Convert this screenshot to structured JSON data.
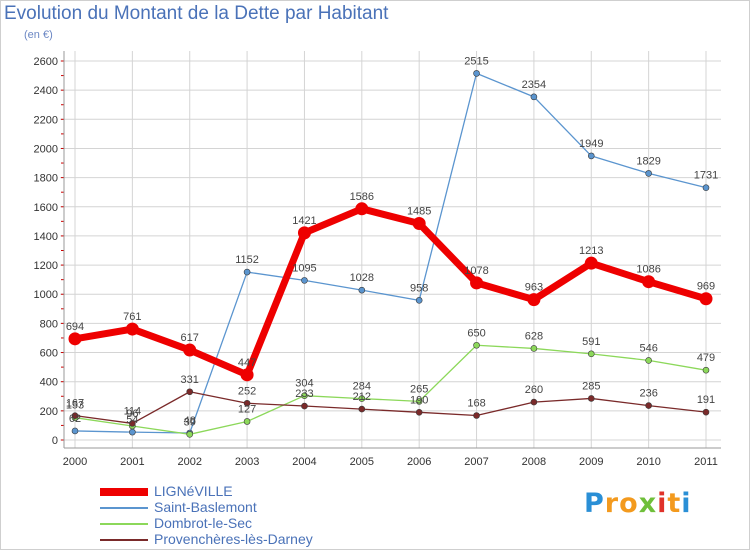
{
  "title": "Evolution du Montant de la Dette par Habitant",
  "subtitle": "(en €)",
  "logo_text": "Proxiti",
  "chart_data": {
    "type": "line",
    "x": [
      "2000",
      "2001",
      "2002",
      "2003",
      "2004",
      "2005",
      "2006",
      "2007",
      "2008",
      "2009",
      "2010",
      "2011"
    ],
    "ylim": [
      0,
      2600
    ],
    "yticks": [
      0,
      200,
      400,
      600,
      800,
      1000,
      1200,
      1400,
      1600,
      1800,
      2000,
      2200,
      2400,
      2600
    ],
    "grid": true,
    "legend_position": "bottom-left",
    "series": [
      {
        "name": "LIGNéVILLE",
        "color": "#ee0000",
        "emphasis": true,
        "values": [
          694,
          761,
          617,
          447,
          1421,
          1586,
          1485,
          1078,
          963,
          1213,
          1086,
          969
        ]
      },
      {
        "name": "Saint-Baslemont",
        "color": "#5b95cf",
        "values": [
          62,
          54,
          48,
          1152,
          1095,
          1028,
          958,
          2515,
          2354,
          1949,
          1829,
          1731
        ]
      },
      {
        "name": "Dombrot-le-Sec",
        "color": "#8cd85a",
        "values": [
          153,
          96,
          39,
          127,
          304,
          284,
          265,
          650,
          628,
          591,
          546,
          479
        ]
      },
      {
        "name": "Provenchères-lès-Darney",
        "color": "#7a2a2a",
        "values": [
          167,
          114,
          331,
          252,
          233,
          212,
          190,
          168,
          260,
          285,
          236,
          191
        ]
      }
    ]
  }
}
